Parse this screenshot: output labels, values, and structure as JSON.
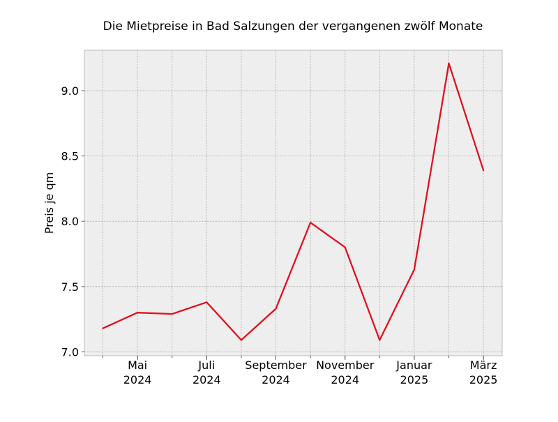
{
  "chart_data": {
    "type": "line",
    "title": "Die Mietpreise in Bad Salzungen der vergangenen zwölf Monate",
    "xlabel": "",
    "ylabel": "Preis je qm",
    "x": [
      "2024-04",
      "2024-05",
      "2024-06",
      "2024-07",
      "2024-08",
      "2024-09",
      "2024-10",
      "2024-11",
      "2024-12",
      "2025-01",
      "2025-02",
      "2025-03"
    ],
    "series": [
      {
        "name": "",
        "color": "#e3101d",
        "values": [
          7.18,
          7.3,
          7.29,
          7.38,
          7.09,
          7.33,
          7.99,
          7.8,
          7.09,
          7.63,
          9.21,
          8.39
        ]
      }
    ],
    "ylim": [
      6.97,
      9.31
    ],
    "yticks": [
      7.0,
      7.5,
      8.0,
      8.5,
      9.0
    ],
    "ytick_labels": [
      "7.0",
      "7.5",
      "8.0",
      "8.5",
      "9.0"
    ],
    "xticks": [
      {
        "month": "Mai",
        "year": "2024",
        "index": 1
      },
      {
        "month": "Juli",
        "year": "2024",
        "index": 3
      },
      {
        "month": "September",
        "year": "2024",
        "index": 5
      },
      {
        "month": "November",
        "year": "2024",
        "index": 7
      },
      {
        "month": "Januar",
        "year": "2025",
        "index": 9
      },
      {
        "month": "März",
        "year": "2025",
        "index": 11
      }
    ],
    "grid": true,
    "background_color": "#eeeeee",
    "grid_color": "#b0b0b0"
  }
}
